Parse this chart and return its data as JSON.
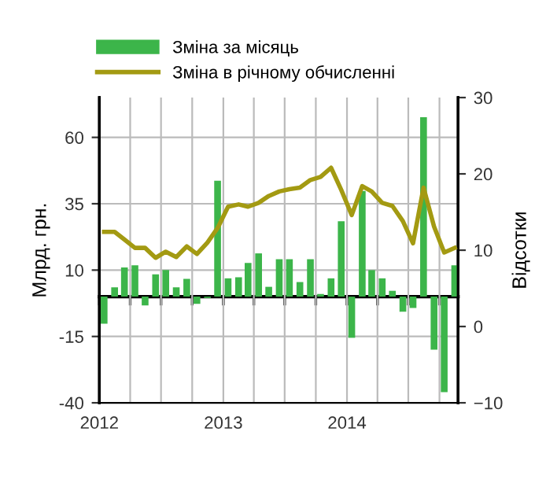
{
  "chart_data": {
    "type": "bar",
    "xlabel": null,
    "ylabel": "Млрд. грн.",
    "y2label": "Відсотки",
    "x": [
      "2012-01-15",
      "2012-02-15",
      "2012-03-15",
      "2012-04-15",
      "2012-05-15",
      "2012-06-15",
      "2012-07-15",
      "2012-08-15",
      "2012-09-15",
      "2012-10-15",
      "2012-11-15",
      "2012-12-15",
      "2013-01-15",
      "2013-02-15",
      "2013-03-15",
      "2013-04-15",
      "2013-05-15",
      "2013-06-15",
      "2013-07-15",
      "2013-08-15",
      "2013-09-15",
      "2013-10-15",
      "2013-11-15",
      "2013-12-15",
      "2014-01-15",
      "2014-02-15",
      "2014-03-15",
      "2014-04-15",
      "2014-05-15",
      "2014-06-15",
      "2014-07-15",
      "2014-08-15",
      "2014-09-15",
      "2014-10-15",
      "2014-11-15"
    ],
    "series": [
      {
        "name": "Зміна за місяць",
        "color": "#3cb54a",
        "values": [
          -10.2,
          3.5,
          11,
          11.8,
          -3.3,
          8.4,
          10,
          3.5,
          6.7,
          -2.7,
          -0.5,
          43.7,
          6.9,
          7.3,
          12.7,
          16.3,
          3.7,
          14.1,
          14.1,
          5.5,
          14.1,
          1,
          6.9,
          28.4,
          -15.5,
          39.8,
          10,
          6.9,
          2.2,
          -5.7,
          -4.3,
          67.6,
          -20,
          -36,
          11.8
        ]
      },
      {
        "name": "Зміна в річному обчисленні",
        "type": "line",
        "axis": "y2",
        "color": "#a39a12",
        "marker": "none",
        "line_style": "solid",
        "values": [
          12.4,
          12.4,
          11.4,
          10.3,
          10.3,
          9.0,
          9.8,
          9.1,
          10.5,
          9.5,
          11,
          12.9,
          15.7,
          16,
          15.7,
          16.2,
          17.1,
          17.7,
          18,
          18.2,
          19.2,
          19.6,
          20.8,
          17.9,
          14.6,
          18.4,
          17.7,
          16.2,
          15.8,
          13.8,
          10.9,
          18.2,
          13.1,
          9.7,
          10.3
        ]
      }
    ],
    "xlim": [
      "2012-01-01",
      "2014-11-25"
    ],
    "xticks": [
      {
        "value": "2012-01-01",
        "label": "2012"
      },
      {
        "value": "2012-04-01",
        "label": null
      },
      {
        "value": "2012-07-01",
        "label": null
      },
      {
        "value": "2012-10-01",
        "label": null
      },
      {
        "value": "2013-01-01",
        "label": "2013"
      },
      {
        "value": "2013-04-01",
        "label": null
      },
      {
        "value": "2013-07-01",
        "label": null
      },
      {
        "value": "2013-10-01",
        "label": null
      },
      {
        "value": "2014-01-01",
        "label": "2014"
      },
      {
        "value": "2014-04-01",
        "label": null
      },
      {
        "value": "2014-07-01",
        "label": null
      },
      {
        "value": "2014-10-01",
        "label": null
      }
    ],
    "ylim": [
      -40,
      75
    ],
    "yticks": [
      -40,
      -15,
      10,
      35,
      60
    ],
    "y2lim": [
      -10,
      30
    ],
    "y2ticks": [
      -10,
      0,
      10,
      20,
      30
    ],
    "grid": true,
    "legend": "top"
  }
}
